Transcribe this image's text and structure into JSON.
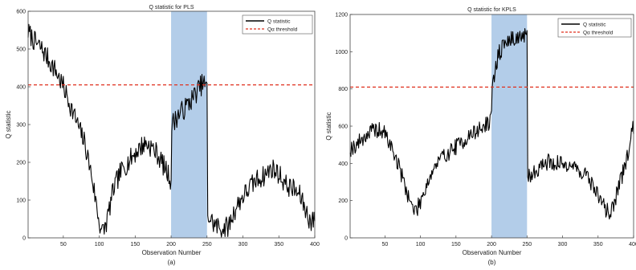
{
  "figure": {
    "panels": [
      {
        "caption": "(a)",
        "chart_data": {
          "type": "line",
          "title": "Q statistic for PLS",
          "xlabel": "Observation Number",
          "ylabel": "Q statistic",
          "xlim": [
            1,
            400
          ],
          "ylim": [
            0,
            600
          ],
          "xticks": [
            50,
            100,
            150,
            200,
            250,
            300,
            350,
            400
          ],
          "yticks": [
            0,
            100,
            200,
            300,
            400,
            500,
            600
          ],
          "highlight": {
            "x_start": 200,
            "x_end": 250,
            "color": "#b3cde9"
          },
          "grid": false,
          "legend_position": "top-right",
          "series": [
            {
              "name": "Q statistic",
              "color": "#000000",
              "style": "solid",
              "anchors": [
                [
                  1,
                  545
                ],
                [
                  10,
                  520
                ],
                [
                  20,
                  500
                ],
                [
                  30,
                  470
                ],
                [
                  40,
                  440
                ],
                [
                  50,
                  400
                ],
                [
                  60,
                  350
                ],
                [
                  70,
                  300
                ],
                [
                  80,
                  250
                ],
                [
                  90,
                  160
                ],
                [
                  95,
                  100
                ],
                [
                  100,
                  40
                ],
                [
                  105,
                  15
                ],
                [
                  110,
                  40
                ],
                [
                  120,
                  130
                ],
                [
                  130,
                  175
                ],
                [
                  140,
                  200
                ],
                [
                  150,
                  225
                ],
                [
                  160,
                  245
                ],
                [
                  165,
                  250
                ],
                [
                  170,
                  245
                ],
                [
                  180,
                  225
                ],
                [
                  190,
                  190
                ],
                [
                  198,
                  160
                ],
                [
                  200,
                  150
                ],
                [
                  201,
                  300
                ],
                [
                  210,
                  325
                ],
                [
                  220,
                  345
                ],
                [
                  230,
                  370
                ],
                [
                  240,
                  400
                ],
                [
                  245,
                  410
                ],
                [
                  249,
                  400
                ],
                [
                  250,
                  390
                ],
                [
                  251,
                  60
                ],
                [
                  260,
                  35
                ],
                [
                  270,
                  25
                ],
                [
                  280,
                  30
                ],
                [
                  290,
                  80
                ],
                [
                  300,
                  110
                ],
                [
                  310,
                  135
                ],
                [
                  320,
                  155
                ],
                [
                  330,
                  165
                ],
                [
                  340,
                  185
                ],
                [
                  350,
                  170
                ],
                [
                  360,
                  140
                ],
                [
                  370,
                  130
                ],
                [
                  380,
                  110
                ],
                [
                  390,
                  60
                ],
                [
                  395,
                  40
                ],
                [
                  400,
                  50
                ]
              ],
              "noise": 28
            },
            {
              "name": "Qα threshold",
              "color": "#e0301e",
              "style": "dashed",
              "constant": 405
            }
          ]
        }
      },
      {
        "caption": "(b)",
        "chart_data": {
          "type": "line",
          "title": "Q statistic for KPLS",
          "xlabel": "Observation Number",
          "ylabel": "Q statistic",
          "xlim": [
            1,
            400
          ],
          "ylim": [
            0,
            1200
          ],
          "xticks": [
            50,
            100,
            150,
            200,
            250,
            300,
            350,
            400
          ],
          "yticks": [
            0,
            200,
            400,
            600,
            800,
            1000,
            1200
          ],
          "highlight": {
            "x_start": 200,
            "x_end": 250,
            "color": "#b3cde9"
          },
          "grid": false,
          "legend_position": "top-right",
          "series": [
            {
              "name": "Q statistic",
              "color": "#000000",
              "style": "solid",
              "anchors": [
                [
                  1,
                  480
                ],
                [
                  10,
                  500
                ],
                [
                  20,
                  540
                ],
                [
                  30,
                  570
                ],
                [
                  40,
                  580
                ],
                [
                  50,
                  560
                ],
                [
                  60,
                  480
                ],
                [
                  70,
                  380
                ],
                [
                  80,
                  260
                ],
                [
                  90,
                  150
                ],
                [
                  95,
                  150
                ],
                [
                  100,
                  200
                ],
                [
                  110,
                  300
                ],
                [
                  120,
                  380
                ],
                [
                  130,
                  430
                ],
                [
                  140,
                  460
                ],
                [
                  150,
                  490
                ],
                [
                  160,
                  520
                ],
                [
                  170,
                  550
                ],
                [
                  180,
                  575
                ],
                [
                  190,
                  600
                ],
                [
                  199,
                  630
                ],
                [
                  200,
                  640
                ],
                [
                  201,
                  800
                ],
                [
                  205,
                  900
                ],
                [
                  210,
                  990
                ],
                [
                  220,
                  1050
                ],
                [
                  230,
                  1070
                ],
                [
                  240,
                  1080
                ],
                [
                  249,
                  1080
                ],
                [
                  250,
                  1070
                ],
                [
                  251,
                  330
                ],
                [
                  260,
                  350
                ],
                [
                  270,
                  390
                ],
                [
                  280,
                  410
                ],
                [
                  290,
                  400
                ],
                [
                  300,
                  395
                ],
                [
                  310,
                  400
                ],
                [
                  320,
                  370
                ],
                [
                  330,
                  350
                ],
                [
                  340,
                  300
                ],
                [
                  350,
                  230
                ],
                [
                  360,
                  160
                ],
                [
                  365,
                  130
                ],
                [
                  370,
                  160
                ],
                [
                  380,
                  280
                ],
                [
                  390,
                  420
                ],
                [
                  400,
                  600
                ]
              ],
              "noise": 45
            },
            {
              "name": "Qα threshold",
              "color": "#e0301e",
              "style": "dashed",
              "constant": 810
            }
          ]
        }
      }
    ]
  }
}
